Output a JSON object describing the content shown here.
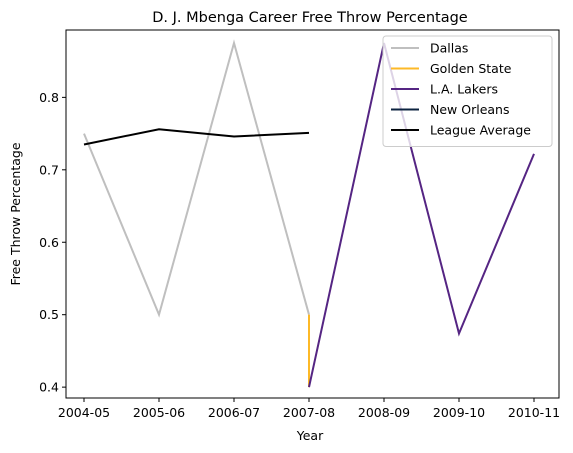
{
  "chart_data": {
    "type": "line",
    "title": "D. J. Mbenga Career Free Throw Percentage",
    "xlabel": "Year",
    "ylabel": "Free Throw Percentage",
    "categories": [
      "2004-05",
      "2005-06",
      "2006-07",
      "2007-08",
      "2008-09",
      "2009-10",
      "2010-11"
    ],
    "ylim": [
      0.385,
      0.893
    ],
    "yticks": [
      0.4,
      0.5,
      0.6,
      0.7,
      0.8
    ],
    "ytick_labels": [
      "0.4",
      "0.5",
      "0.6",
      "0.7",
      "0.8"
    ],
    "grid": false,
    "legend_position": "top-right",
    "series": [
      {
        "name": "Dallas",
        "color": "#BFBFBF",
        "points": [
          [
            "2004-05",
            0.75
          ],
          [
            "2005-06",
            0.5
          ],
          [
            "2006-07",
            0.875
          ],
          [
            "2007-08",
            0.5
          ]
        ]
      },
      {
        "name": "Golden State",
        "color": "#FDB927",
        "points": [
          [
            "2007-08",
            0.5
          ],
          [
            "2007-08",
            0.4
          ]
        ]
      },
      {
        "name": "L.A. Lakers",
        "color": "#552583",
        "points": [
          [
            "2007-08",
            0.4
          ],
          [
            "2008-09",
            0.875
          ],
          [
            "2009-10",
            0.474
          ],
          [
            "2010-11",
            0.722
          ]
        ]
      },
      {
        "name": "New Orleans",
        "color": "#0C2340",
        "points": []
      },
      {
        "name": "League Average",
        "color": "#000000",
        "points": [
          [
            "2004-05",
            0.735
          ],
          [
            "2005-06",
            0.756
          ],
          [
            "2006-07",
            0.746
          ],
          [
            "2007-08",
            0.751
          ]
        ]
      }
    ]
  }
}
